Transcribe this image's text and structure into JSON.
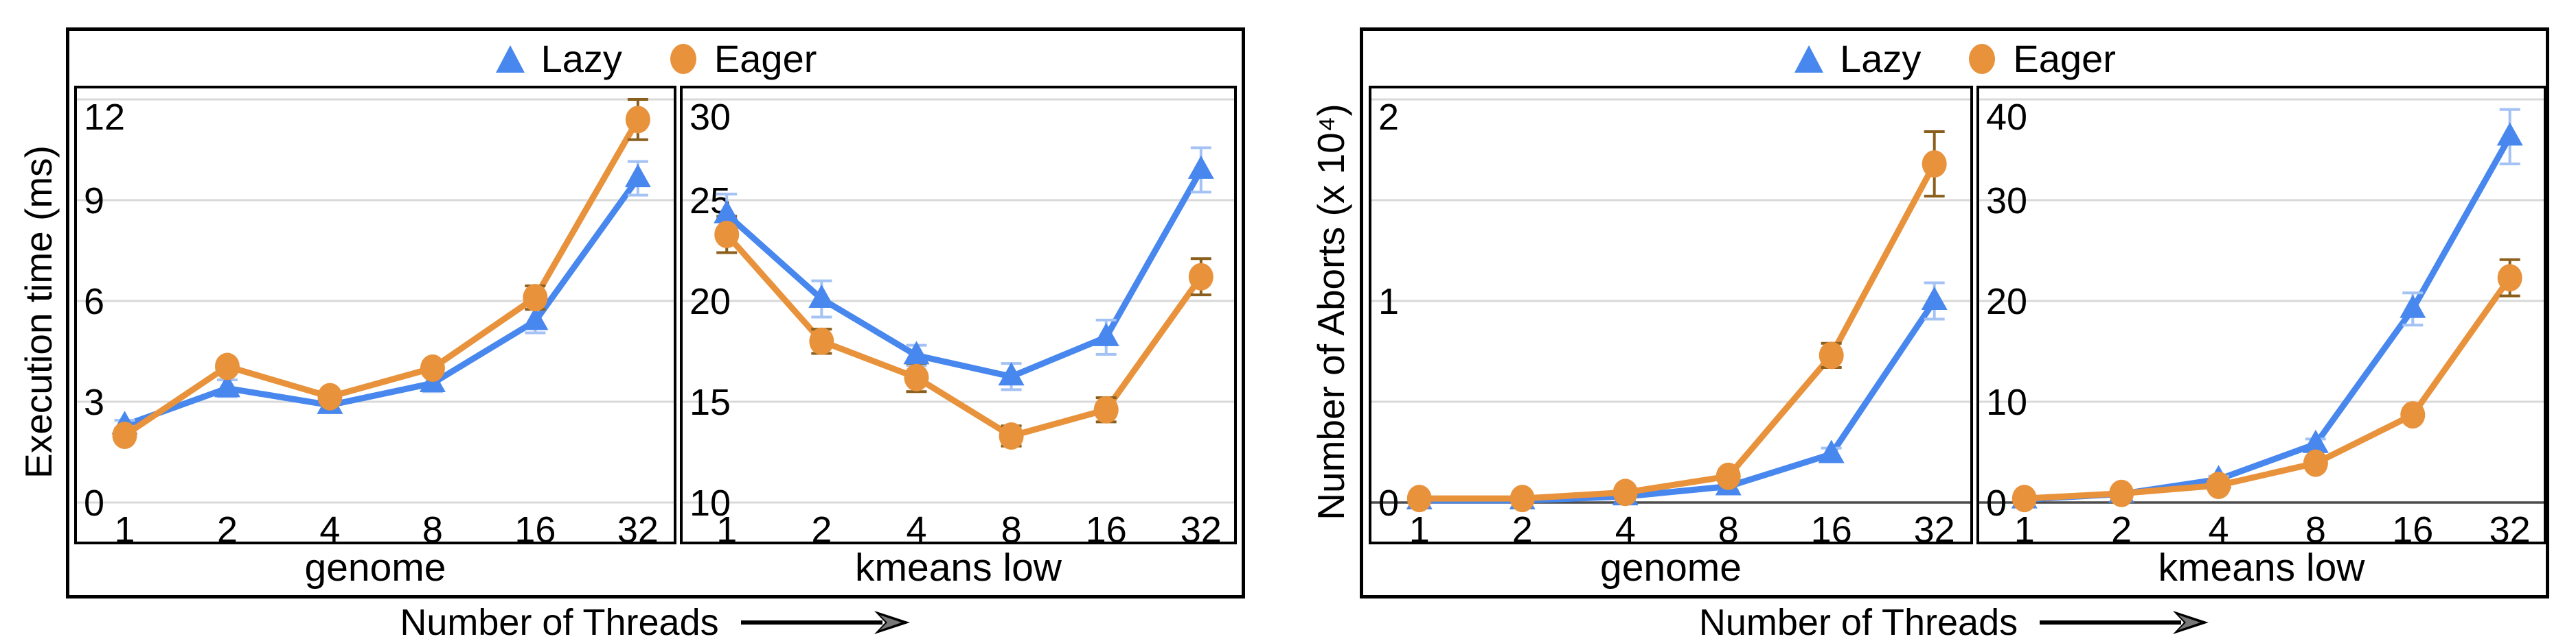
{
  "chart_data": [
    {
      "id": "execution-time-figure",
      "type": "line",
      "y_axis_label": "Execution time (ms)",
      "x_axis_label": "Number of Threads",
      "x_categories": [
        "1",
        "2",
        "4",
        "8",
        "16",
        "32"
      ],
      "legend": [
        {
          "name": "Lazy",
          "marker": "triangle",
          "color": "#4787ee",
          "error_color": "#a4c2f4"
        },
        {
          "name": "Eager",
          "marker": "circle",
          "color": "#e8923c",
          "error_color": "#8a5f1e"
        }
      ],
      "legend_position": "top-center",
      "grid": true,
      "panels": [
        {
          "benchmark": "genome",
          "ylim": [
            0,
            12
          ],
          "yticks": [
            0,
            3,
            6,
            9,
            12
          ],
          "gridlines": [
            0,
            3,
            6,
            9,
            12
          ],
          "baseline_dark": false,
          "series": [
            {
              "name": "Lazy",
              "values": [
                2.3,
                3.4,
                2.9,
                3.55,
                5.4,
                9.65
              ],
              "errors": [
                0.15,
                0.25,
                0.2,
                0.25,
                0.35,
                0.5
              ]
            },
            {
              "name": "Eager",
              "values": [
                2.0,
                4.05,
                3.15,
                4.0,
                6.1,
                11.4
              ],
              "errors": [
                0.2,
                0.2,
                0.15,
                0.2,
                0.35,
                0.6
              ]
            }
          ]
        },
        {
          "benchmark": "kmeans low",
          "ylim": [
            10,
            30
          ],
          "yticks": [
            10,
            15,
            20,
            25,
            30
          ],
          "gridlines": [
            10,
            15,
            20,
            25,
            30
          ],
          "baseline_dark": false,
          "series": [
            {
              "name": "Lazy",
              "values": [
                24.3,
                20.1,
                17.3,
                16.25,
                18.2,
                26.5
              ],
              "errors": [
                1.0,
                0.9,
                0.5,
                0.65,
                0.85,
                1.1
              ]
            },
            {
              "name": "Eager",
              "values": [
                23.3,
                18.0,
                16.2,
                13.3,
                14.6,
                21.2
              ],
              "errors": [
                0.9,
                0.6,
                0.7,
                0.5,
                0.6,
                0.9
              ]
            }
          ]
        }
      ]
    },
    {
      "id": "aborts-figure",
      "type": "line",
      "y_axis_label": "Number of Aborts (x 10⁴)",
      "x_axis_label": "Number of Threads",
      "x_categories": [
        "1",
        "2",
        "4",
        "8",
        "16",
        "32"
      ],
      "legend": [
        {
          "name": "Lazy",
          "marker": "triangle",
          "color": "#4787ee",
          "error_color": "#a4c2f4"
        },
        {
          "name": "Eager",
          "marker": "circle",
          "color": "#e8923c",
          "error_color": "#8a5f1e"
        }
      ],
      "legend_position": "top-center",
      "grid": true,
      "panels": [
        {
          "benchmark": "genome",
          "ylim": [
            0,
            2
          ],
          "yticks": [
            0,
            1,
            2
          ],
          "gridlines": [
            0,
            0.5,
            1,
            1.5,
            2
          ],
          "baseline_dark": true,
          "series": [
            {
              "name": "Lazy",
              "values": [
                0.01,
                0.01,
                0.03,
                0.08,
                0.24,
                1.0
              ],
              "errors": [
                0,
                0,
                0.01,
                0.02,
                0.03,
                0.09
              ]
            },
            {
              "name": "Eager",
              "values": [
                0.02,
                0.02,
                0.05,
                0.13,
                0.73,
                1.68
              ],
              "errors": [
                0,
                0,
                0.01,
                0.03,
                0.06,
                0.16
              ]
            }
          ]
        },
        {
          "benchmark": "kmeans low",
          "ylim": [
            0,
            40
          ],
          "yticks": [
            0,
            10,
            20,
            30,
            40
          ],
          "gridlines": [
            0,
            10,
            20,
            30,
            40
          ],
          "baseline_dark": true,
          "series": [
            {
              "name": "Lazy",
              "values": [
                0.3,
                0.85,
                2.3,
                5.8,
                19.2,
                36.3
              ],
              "errors": [
                0,
                0,
                0.3,
                0.5,
                1.6,
                2.7
              ]
            },
            {
              "name": "Eager",
              "values": [
                0.4,
                0.9,
                1.7,
                3.9,
                8.7,
                22.3
              ],
              "errors": [
                0,
                0,
                0.2,
                0.3,
                0.6,
                1.8
              ]
            }
          ]
        }
      ]
    }
  ]
}
